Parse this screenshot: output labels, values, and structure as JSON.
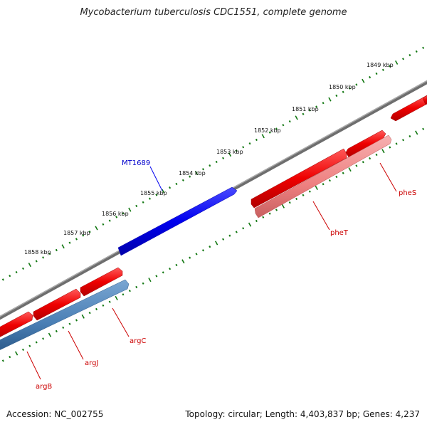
{
  "title": "Mycobacterium tuberculosis CDC1551, complete genome",
  "footer": {
    "accession": "Accession: NC_002755",
    "summary": "Topology: circular; Length: 4,403,837 bp; Genes: 4,237"
  },
  "tick_labels": [
    "1849 kbp",
    "1850 kbp",
    "1851 kbp",
    "1852 kbp",
    "1853 kbp",
    "1854 kbp",
    "1855 kbp",
    "1856 kbp",
    "1857 kbp",
    "1858 kbp"
  ],
  "genes": [
    {
      "name": "MT1689",
      "strand": "outer",
      "color": "#0000ee"
    },
    {
      "name": "pheS",
      "strand": "plus",
      "color": "#dd0000"
    },
    {
      "name": "pheT",
      "strand": "plus",
      "color": "#dd0000"
    },
    {
      "name": "argC",
      "strand": "plus",
      "color": "#dd0000"
    },
    {
      "name": "argJ",
      "strand": "plus",
      "color": "#dd0000"
    },
    {
      "name": "argB",
      "strand": "plus",
      "color": "#dd0000"
    }
  ],
  "colors": {
    "backbone": "#777777",
    "ticks": "#117711",
    "forward_gene": "#ee1111",
    "outer_gene": "#1111ee",
    "rna_pale": "#ee8888",
    "steel": "#4a7fb5"
  }
}
